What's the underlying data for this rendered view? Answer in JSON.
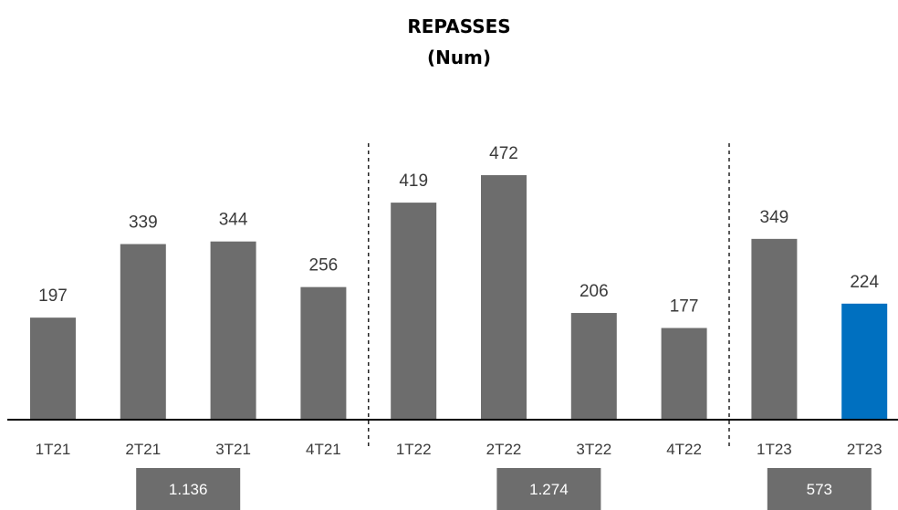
{
  "chart_data": {
    "type": "bar",
    "title": "REPASSES",
    "subtitle": "(Num)",
    "categories": [
      "1T21",
      "2T21",
      "3T21",
      "4T21",
      "1T22",
      "2T22",
      "3T22",
      "4T22",
      "1T23",
      "2T23"
    ],
    "values": [
      197,
      339,
      344,
      256,
      419,
      472,
      206,
      177,
      349,
      224
    ],
    "bar_color": "#6d6d6d",
    "highlight_color": "#0070c0",
    "highlight_index": 9,
    "ylim": [
      0,
      472
    ],
    "grid": false,
    "groups": [
      {
        "start": 0,
        "end": 3,
        "total": "1.136"
      },
      {
        "start": 4,
        "end": 7,
        "total": "1.274"
      },
      {
        "start": 8,
        "end": 9,
        "total": "573"
      }
    ]
  }
}
